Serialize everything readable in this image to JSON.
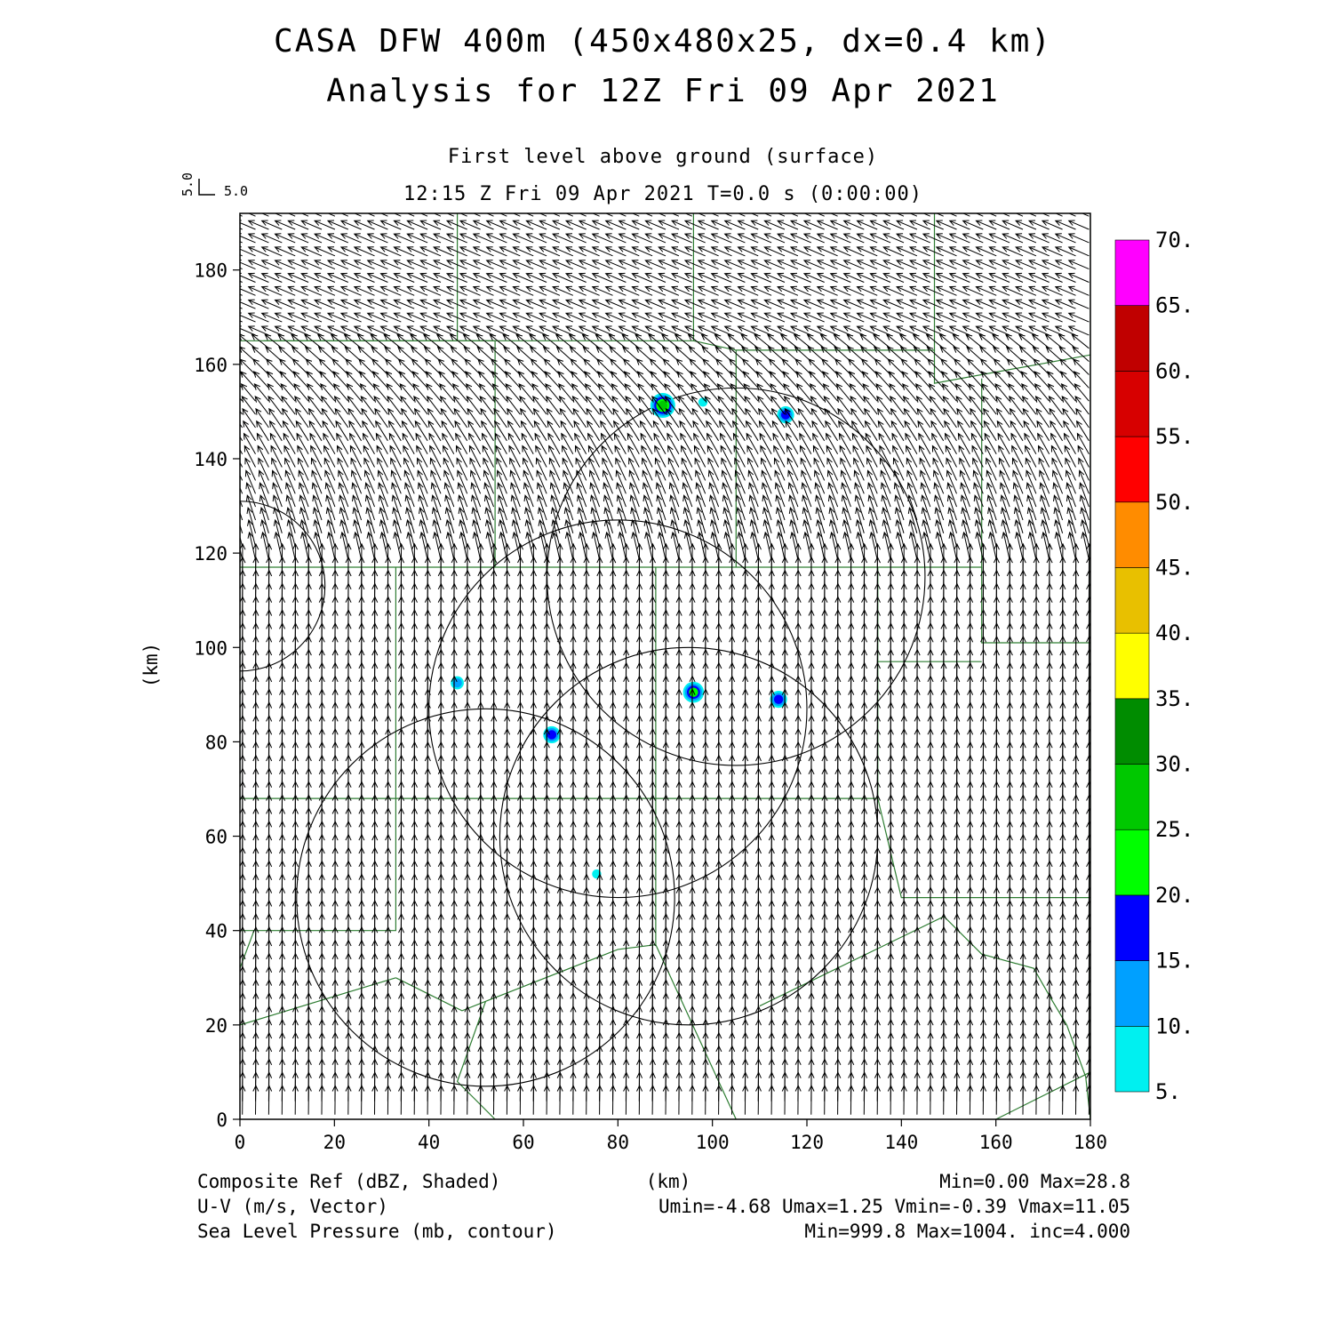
{
  "title": "CASA DFW 400m (450x480x25, dx=0.4 km)",
  "subtitle": "Analysis for 12Z Fri 09 Apr 2021",
  "level_label": "First level above ground (surface)",
  "time_label": "12:15 Z Fri 09 Apr 2021    T=0.0 s (0:00:00)",
  "vector_scale": {
    "u_label": "5.0",
    "v_label": "5.0"
  },
  "footer": {
    "left": [
      "Composite Ref (dBZ, Shaded)",
      "U-V (m/s, Vector)",
      "Sea Level Pressure (mb, contour)"
    ],
    "center": "(km)",
    "right": [
      "Min=0.00 Max=28.8",
      "Umin=-4.68 Umax=1.25 Vmin=-0.39 Vmax=11.05",
      "Min=999.8 Max=1004. inc=4.000"
    ]
  },
  "colorbar": {
    "labels": [
      "5.",
      "10.",
      "15.",
      "20.",
      "25.",
      "30.",
      "35.",
      "40.",
      "45.",
      "50.",
      "55.",
      "60.",
      "65.",
      "70."
    ],
    "colors": [
      "#00f0f0",
      "#00a0ff",
      "#0000ff",
      "#00ff00",
      "#00c800",
      "#008c00",
      "#ffff00",
      "#e8c000",
      "#ff8c00",
      "#ff0000",
      "#d70000",
      "#c00000",
      "#ff00ff"
    ]
  },
  "colors": {
    "county_lines": "#2e7d32",
    "contours": "#000000",
    "vectors": "#000000"
  },
  "chart_data": {
    "type": "vector_field",
    "xlabel": "(km)",
    "ylabel": "(km)",
    "xlim": [
      0,
      180
    ],
    "ylim": [
      0,
      192
    ],
    "xticks": [
      0,
      20,
      40,
      60,
      80,
      100,
      120,
      140,
      160,
      180
    ],
    "yticks": [
      0,
      20,
      40,
      60,
      80,
      100,
      120,
      140,
      160,
      180
    ],
    "xtick_labels": [
      "0",
      "20",
      "40",
      "60",
      "80",
      "100",
      "120",
      "140",
      "160",
      "180"
    ],
    "ytick_labels": [
      "0",
      "20",
      "40",
      "60",
      "80",
      "100",
      "120",
      "140",
      "160",
      "180"
    ],
    "vectors": {
      "spacing_km": 2.8,
      "regimes": [
        {
          "region": "y > 165 km",
          "u": -3.5,
          "v": 1.5
        },
        {
          "region": "117-165 km",
          "u": -1.2,
          "v": 4.5
        },
        {
          "region": "y < 117 km",
          "u": 0.0,
          "v": 5.0
        }
      ]
    },
    "pressure_contours": [
      {
        "cx": 80,
        "cy": 87,
        "rx": 40,
        "ry": 40
      },
      {
        "cx": 105,
        "cy": 115,
        "rx": 40,
        "ry": 40
      },
      {
        "cx": 95,
        "cy": 60,
        "rx": 40,
        "ry": 40
      },
      {
        "cx": 52,
        "cy": 47,
        "rx": 40,
        "ry": 40
      },
      {
        "cx": 0,
        "cy": 113,
        "rx": 18,
        "ry": 18
      }
    ],
    "reflectivity_cells": [
      {
        "x": 89.5,
        "y": 151.3,
        "dbz": 28
      },
      {
        "x": 115.5,
        "y": 149.3,
        "dbz": 16
      },
      {
        "x": 96.0,
        "y": 90.5,
        "dbz": 22
      },
      {
        "x": 114.0,
        "y": 89.0,
        "dbz": 17
      },
      {
        "x": 66.0,
        "y": 81.5,
        "dbz": 17
      },
      {
        "x": 46.0,
        "y": 92.5,
        "dbz": 11
      },
      {
        "x": 98.0,
        "y": 152.0,
        "dbz": 6
      },
      {
        "x": 75.5,
        "y": 52.0,
        "dbz": 6
      }
    ],
    "county_boundaries": [
      [
        [
          0,
          165
        ],
        [
          46,
          165
        ],
        [
          46,
          192
        ]
      ],
      [
        [
          46,
          165
        ],
        [
          54,
          165
        ],
        [
          54,
          165
        ]
      ],
      [
        [
          5,
          165
        ],
        [
          54,
          165
        ],
        [
          54,
          117
        ]
      ],
      [
        [
          54,
          165
        ],
        [
          96,
          165
        ],
        [
          96,
          192
        ]
      ],
      [
        [
          96,
          165
        ],
        [
          105,
          163
        ],
        [
          147,
          163
        ],
        [
          147,
          192
        ]
      ],
      [
        [
          105,
          163
        ],
        [
          105,
          117
        ]
      ],
      [
        [
          147,
          163
        ],
        [
          147,
          156
        ],
        [
          180,
          162
        ]
      ],
      [
        [
          0,
          117
        ],
        [
          135,
          117
        ],
        [
          157,
          117
        ],
        [
          157,
          157
        ]
      ],
      [
        [
          157,
          117
        ],
        [
          157,
          101
        ],
        [
          180,
          101
        ]
      ],
      [
        [
          0,
          68
        ],
        [
          135,
          68
        ],
        [
          135,
          117
        ]
      ],
      [
        [
          135,
          97
        ],
        [
          157,
          97
        ]
      ],
      [
        [
          0,
          66
        ],
        [
          0,
          192
        ]
      ],
      [
        [
          135,
          68
        ],
        [
          140,
          47
        ],
        [
          180,
          47
        ]
      ],
      [
        [
          0,
          40
        ],
        [
          33,
          40
        ],
        [
          33,
          68
        ]
      ],
      [
        [
          3,
          40
        ],
        [
          0,
          32
        ]
      ],
      [
        [
          33,
          30
        ],
        [
          47,
          23
        ],
        [
          52,
          25
        ],
        [
          80,
          36
        ],
        [
          88,
          37
        ],
        [
          88,
          68
        ]
      ],
      [
        [
          0,
          20
        ],
        [
          33,
          30
        ]
      ],
      [
        [
          52,
          25
        ],
        [
          46,
          8
        ],
        [
          54,
          0
        ]
      ],
      [
        [
          88,
          37
        ],
        [
          105,
          0
        ]
      ],
      [
        [
          110,
          24
        ],
        [
          149,
          43
        ],
        [
          157,
          35
        ],
        [
          168,
          32
        ],
        [
          172,
          25
        ],
        [
          175,
          20
        ],
        [
          179,
          9
        ],
        [
          180,
          0
        ]
      ],
      [
        [
          160,
          0
        ],
        [
          180,
          10
        ]
      ],
      [
        [
          88,
          68
        ],
        [
          88,
          117
        ]
      ],
      [
        [
          33,
          68
        ],
        [
          33,
          117
        ]
      ],
      [
        [
          180,
          12
        ],
        [
          180,
          192
        ]
      ]
    ]
  }
}
